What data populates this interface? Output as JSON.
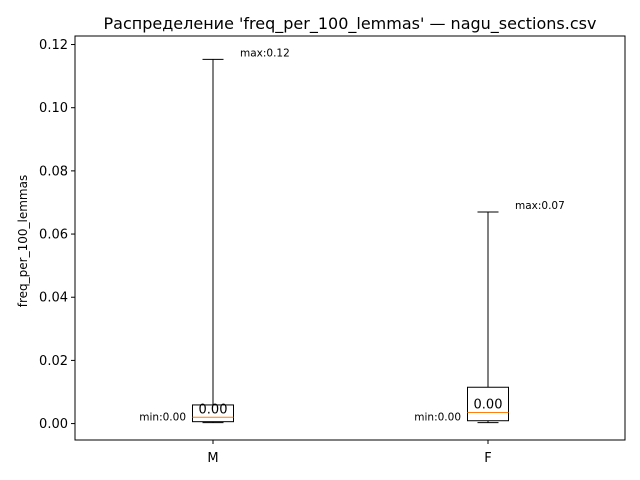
{
  "chart_data": {
    "type": "boxplot",
    "title": "Распределение 'freq_per_100_lemmas' — nagu_sections.csv",
    "xlabel": "",
    "ylabel": "freq_per_100_lemmas",
    "ylim": [
      -0.0052,
      0.1227
    ],
    "yticks": [
      0.0,
      0.02,
      0.04,
      0.06,
      0.08,
      0.1,
      0.12
    ],
    "ytick_labels": [
      "0.00",
      "0.02",
      "0.04",
      "0.06",
      "0.08",
      "0.10",
      "0.12"
    ],
    "categories": [
      "M",
      "F"
    ],
    "boxes": [
      {
        "category": "M",
        "min": 0.0003,
        "q1": 0.0006,
        "median": 0.002,
        "q3": 0.0059,
        "max": 0.1153,
        "median_label": "0.00",
        "min_label": "min:0.00",
        "max_label": "max:0.12"
      },
      {
        "category": "F",
        "min": 0.0003,
        "q1": 0.0009,
        "median": 0.0035,
        "q3": 0.0115,
        "max": 0.067,
        "median_label": "0.00",
        "min_label": "min:0.00",
        "max_label": "max:0.07"
      }
    ],
    "grid": false,
    "colors": {
      "box": "#000000",
      "median": "#ff7f0e",
      "whisker": "#000000"
    }
  }
}
